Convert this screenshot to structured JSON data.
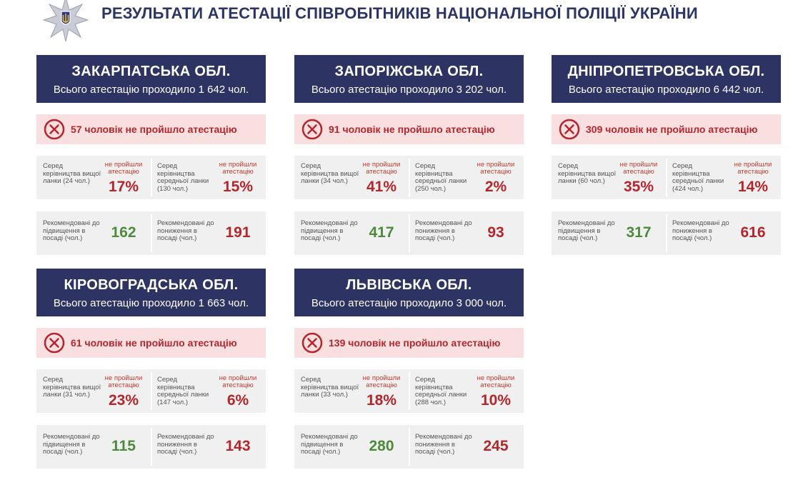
{
  "header": {
    "title": "РЕЗУЛЬТАТИ АТЕСТАЦІЇ СПІВРОБІТНИКІВ НАЦІОНАЛЬНОЇ ПОЛІЦІЇ УКРАЇНИ",
    "emblem_icon": "police-star-trident-emblem"
  },
  "colors": {
    "navy": "#2d3464",
    "red_text": "#b3262c",
    "green_text": "#4e8a3c",
    "pink_bg": "#f9dfdf",
    "gray_bg": "#f0f0f0"
  },
  "labels": {
    "not_passed": "не пройшли атестацію",
    "promotion": "Рекомендовані до підвищення в посаді (чол.)",
    "demotion": "Рекомендовані до пониження в посаді (чол.)"
  },
  "regions": [
    {
      "name": "ЗАКАРПАТСЬКА ОБЛ.",
      "total": "Всього атестацію проходило 1 642 чол.",
      "failed": "57 чоловік не пройшло атестацію",
      "senior_label": "Серед керівництва вищої ланки (24 чол.)",
      "senior_pct": "17%",
      "middle_label": "Серед керівництва середньої ланки (130 чол.)",
      "middle_pct": "15%",
      "promoted": "162",
      "demoted": "191"
    },
    {
      "name": "ЗАПОРІЖСЬКА ОБЛ.",
      "total": "Всього атестацію проходило 3 202 чол.",
      "failed": "91 чоловік не пройшло атестацію",
      "senior_label": "Серед керівництва вищої ланки (34 чол.)",
      "senior_pct": "41%",
      "middle_label": "Серед керівництва середньої ланки (250 чол.)",
      "middle_pct": "2%",
      "promoted": "417",
      "demoted": "93"
    },
    {
      "name": "ДНІПРОПЕТРОВСЬКА ОБЛ.",
      "total": "Всього атестацію проходило 6 442 чол.",
      "failed": "309 чоловік не пройшло атестацію",
      "senior_label": "Серед керівництва вищої ланки (60 чол.)",
      "senior_pct": "35%",
      "middle_label": "Серед керівництва середньої ланки (424 чол.)",
      "middle_pct": "14%",
      "promoted": "317",
      "demoted": "616"
    },
    {
      "name": "КІРОВОГРАДСЬКА ОБЛ.",
      "total": "Всього атестацію проходило 1 663 чол.",
      "failed": "61 чоловік не пройшло атестацію",
      "senior_label": "Серед керівництва вищої ланки (31 чол.)",
      "senior_pct": "23%",
      "middle_label": "Серед керівництва середньої ланки (147 чол.)",
      "middle_pct": "6%",
      "promoted": "115",
      "demoted": "143"
    },
    {
      "name": "ЛЬВІВСЬКА ОБЛ.",
      "total": "Всього атестацію проходило 3 000 чол.",
      "failed": "139 чоловік не пройшло атестацію",
      "senior_label": "Серед керівництва вищої ланки (33 чол.)",
      "senior_pct": "18%",
      "middle_label": "Серед керівництва середньої ланки (288 чол.)",
      "middle_pct": "10%",
      "promoted": "280",
      "demoted": "245"
    }
  ]
}
